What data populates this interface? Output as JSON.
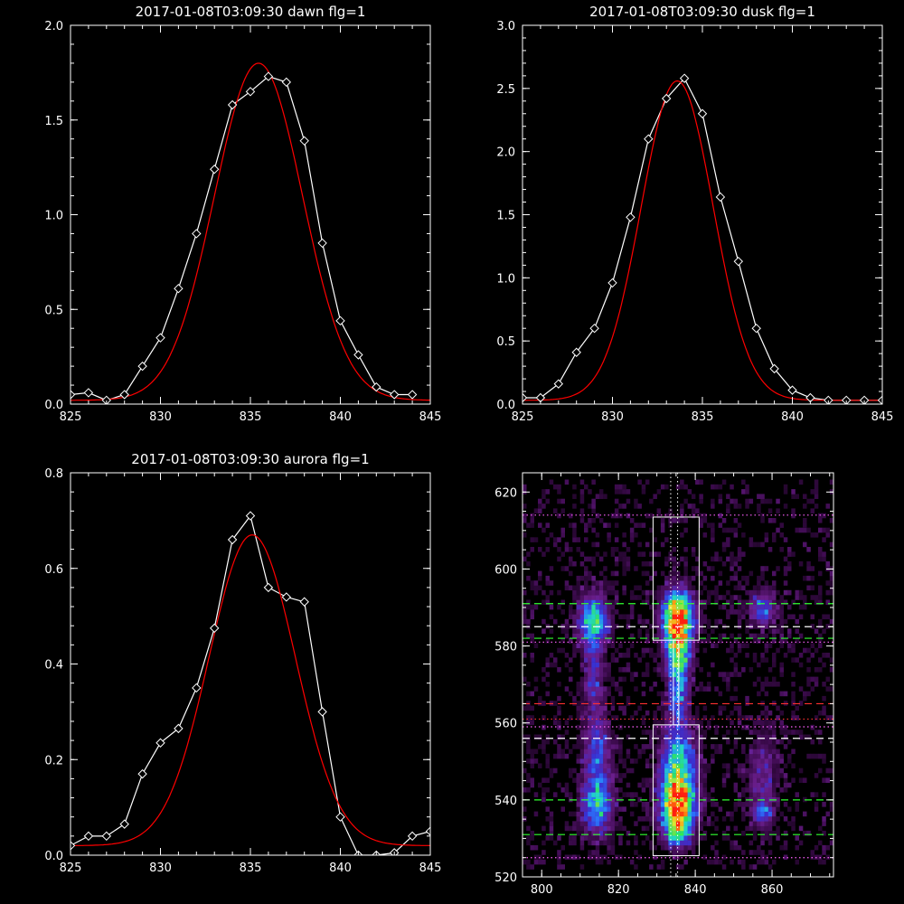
{
  "chart_data": [
    {
      "type": "line",
      "title": "2017-01-08T03:09:30 dawn flg=1",
      "xlim": [
        825,
        845
      ],
      "ylim": [
        0,
        2.0
      ],
      "xticks": [
        825,
        830,
        835,
        840,
        845
      ],
      "yticks": [
        0.0,
        0.5,
        1.0,
        1.5,
        2.0
      ],
      "xtick_labels": [
        "825",
        "830",
        "835",
        "840",
        "845"
      ],
      "ytick_labels": [
        "0.0",
        "0.5",
        "1.0",
        "1.5",
        "2.0"
      ],
      "series": [
        {
          "style": "observed",
          "color": "#ffffff",
          "marker": "diamond",
          "x": [
            825,
            826,
            827,
            828,
            829,
            830,
            831,
            832,
            833,
            834,
            835,
            836,
            837,
            838,
            839,
            840,
            841,
            842,
            843,
            844
          ],
          "y": [
            0.05,
            0.06,
            0.02,
            0.05,
            0.2,
            0.35,
            0.61,
            0.9,
            1.24,
            1.58,
            1.65,
            1.73,
            1.7,
            1.39,
            0.85,
            0.44,
            0.26,
            0.09,
            0.05,
            0.05
          ]
        },
        {
          "style": "gaussian-fit",
          "color": "#ff0000",
          "amplitude": 1.78,
          "center": 835.45,
          "sigma": 2.45,
          "baseline": 0.02
        }
      ]
    },
    {
      "type": "line",
      "title": "2017-01-08T03:09:30 dusk flg=1",
      "xlim": [
        825,
        845
      ],
      "ylim": [
        0,
        3.0
      ],
      "xticks": [
        825,
        830,
        835,
        840,
        845
      ],
      "yticks": [
        0.0,
        0.5,
        1.0,
        1.5,
        2.0,
        2.5,
        3.0
      ],
      "xtick_labels": [
        "825",
        "830",
        "835",
        "840",
        "845"
      ],
      "ytick_labels": [
        "0.0",
        "0.5",
        "1.0",
        "1.5",
        "2.0",
        "2.5",
        "3.0"
      ],
      "series": [
        {
          "style": "observed",
          "color": "#ffffff",
          "marker": "diamond",
          "x": [
            825,
            826,
            827,
            828,
            829,
            830,
            831,
            832,
            833,
            834,
            835,
            836,
            837,
            838,
            839,
            840,
            841,
            842,
            843,
            844,
            845
          ],
          "y": [
            0.05,
            0.05,
            0.16,
            0.41,
            0.6,
            0.96,
            1.48,
            2.1,
            2.42,
            2.58,
            2.3,
            1.64,
            1.13,
            0.6,
            0.28,
            0.11,
            0.05,
            0.03,
            0.03,
            0.03,
            0.03
          ]
        },
        {
          "style": "gaussian-fit",
          "color": "#ff0000",
          "amplitude": 2.53,
          "center": 833.6,
          "sigma": 2.0,
          "baseline": 0.03
        }
      ]
    },
    {
      "type": "line",
      "title": "2017-01-08T03:09:30 aurora flg=1",
      "xlim": [
        825,
        845
      ],
      "ylim": [
        0,
        0.8
      ],
      "xticks": [
        825,
        830,
        835,
        840,
        845
      ],
      "yticks": [
        0.0,
        0.2,
        0.4,
        0.6,
        0.8
      ],
      "xtick_labels": [
        "825",
        "830",
        "835",
        "840",
        "845"
      ],
      "ytick_labels": [
        "0.0",
        "0.2",
        "0.4",
        "0.6",
        "0.8"
      ],
      "series": [
        {
          "style": "observed",
          "color": "#ffffff",
          "marker": "diamond",
          "x": [
            825,
            826,
            827,
            828,
            829,
            830,
            831,
            832,
            833,
            834,
            835,
            836,
            837,
            838,
            839,
            840,
            841,
            842,
            843,
            844,
            845
          ],
          "y": [
            0.02,
            0.04,
            0.04,
            0.065,
            0.17,
            0.235,
            0.265,
            0.35,
            0.475,
            0.66,
            0.71,
            0.56,
            0.54,
            0.53,
            0.3,
            0.08,
            0.0,
            0.0,
            0.005,
            0.04,
            0.05
          ]
        },
        {
          "style": "gaussian-fit",
          "color": "#ff0000",
          "amplitude": 0.65,
          "center": 835.1,
          "sigma": 2.4,
          "baseline": 0.02
        }
      ]
    },
    {
      "type": "heatmap",
      "title": "",
      "xlim": [
        795,
        876
      ],
      "ylim": [
        520,
        625
      ],
      "xticks": [
        800,
        820,
        840,
        860
      ],
      "yticks": [
        520,
        540,
        560,
        580,
        600,
        620
      ],
      "xtick_labels": [
        "800",
        "820",
        "840",
        "860"
      ],
      "ytick_labels": [
        "520",
        "540",
        "560",
        "580",
        "600",
        "620"
      ],
      "colormap": [
        "#000000",
        "#3a0a4a",
        "#6a1e8c",
        "#3a2fd0",
        "#2a7aff",
        "#22d6c8",
        "#30e060",
        "#e8e830",
        "#ff8a10",
        "#ff2010"
      ],
      "blobs": [
        {
          "x": 835,
          "y": 587,
          "sx": 2.6,
          "sy": 4.5,
          "a": 1.0
        },
        {
          "x": 835,
          "y": 578,
          "sx": 2.2,
          "sy": 4.0,
          "a": 0.55
        },
        {
          "x": 835,
          "y": 568,
          "sx": 1.8,
          "sy": 6.0,
          "a": 0.4
        },
        {
          "x": 835,
          "y": 538,
          "sx": 3.0,
          "sy": 4.5,
          "a": 0.78
        },
        {
          "x": 835,
          "y": 548,
          "sx": 3.0,
          "sy": 7.0,
          "a": 0.55
        },
        {
          "x": 835,
          "y": 531,
          "sx": 2.2,
          "sy": 2.5,
          "a": 0.45
        },
        {
          "x": 813,
          "y": 586,
          "sx": 2.6,
          "sy": 4.5,
          "a": 0.55
        },
        {
          "x": 813,
          "y": 572,
          "sx": 1.8,
          "sy": 7.0,
          "a": 0.22
        },
        {
          "x": 814,
          "y": 538,
          "sx": 2.6,
          "sy": 5.0,
          "a": 0.45
        },
        {
          "x": 814,
          "y": 552,
          "sx": 2.4,
          "sy": 7.0,
          "a": 0.3
        },
        {
          "x": 857,
          "y": 589,
          "sx": 2.4,
          "sy": 3.0,
          "a": 0.32
        },
        {
          "x": 857,
          "y": 545,
          "sx": 2.4,
          "sy": 8.0,
          "a": 0.2
        },
        {
          "x": 857,
          "y": 536,
          "sx": 1.6,
          "sy": 2.0,
          "a": 0.3
        }
      ],
      "boxes": [
        {
          "x0": 829,
          "x1": 841,
          "y0": 581.5,
          "y1": 613.5
        },
        {
          "x0": 829,
          "x1": 841,
          "y0": 525.5,
          "y1": 559.5
        },
        {
          "x0": 834.3,
          "x1": 835.7,
          "y0": 559.5,
          "y1": 581.5
        }
      ],
      "vlines": [
        {
          "x": 833.6,
          "color": "#ffffff",
          "dash": "dotted"
        },
        {
          "x": 835.4,
          "color": "#ffffff",
          "dash": "dotted"
        }
      ],
      "hlines": [
        {
          "y": 614,
          "color": "#ff60ff",
          "dash": "dotted"
        },
        {
          "y": 591,
          "color": "#30ff30",
          "dash": "dashed"
        },
        {
          "y": 585,
          "color": "#ffffff",
          "dash": "dashed"
        },
        {
          "y": 582,
          "color": "#30ff30",
          "dash": "dashed"
        },
        {
          "y": 581,
          "color": "#ff60ff",
          "dash": "dotted"
        },
        {
          "y": 565,
          "color": "#ff3030",
          "dash": "dashed"
        },
        {
          "y": 561,
          "color": "#ff3030",
          "dash": "dotted"
        },
        {
          "y": 559,
          "color": "#ff60ff",
          "dash": "dotted"
        },
        {
          "y": 556,
          "color": "#ffffff",
          "dash": "dashed"
        },
        {
          "y": 540,
          "color": "#30ff30",
          "dash": "dashed"
        },
        {
          "y": 531,
          "color": "#30ff30",
          "dash": "dashed"
        },
        {
          "y": 525,
          "color": "#ff60ff",
          "dash": "dotted"
        }
      ]
    }
  ]
}
